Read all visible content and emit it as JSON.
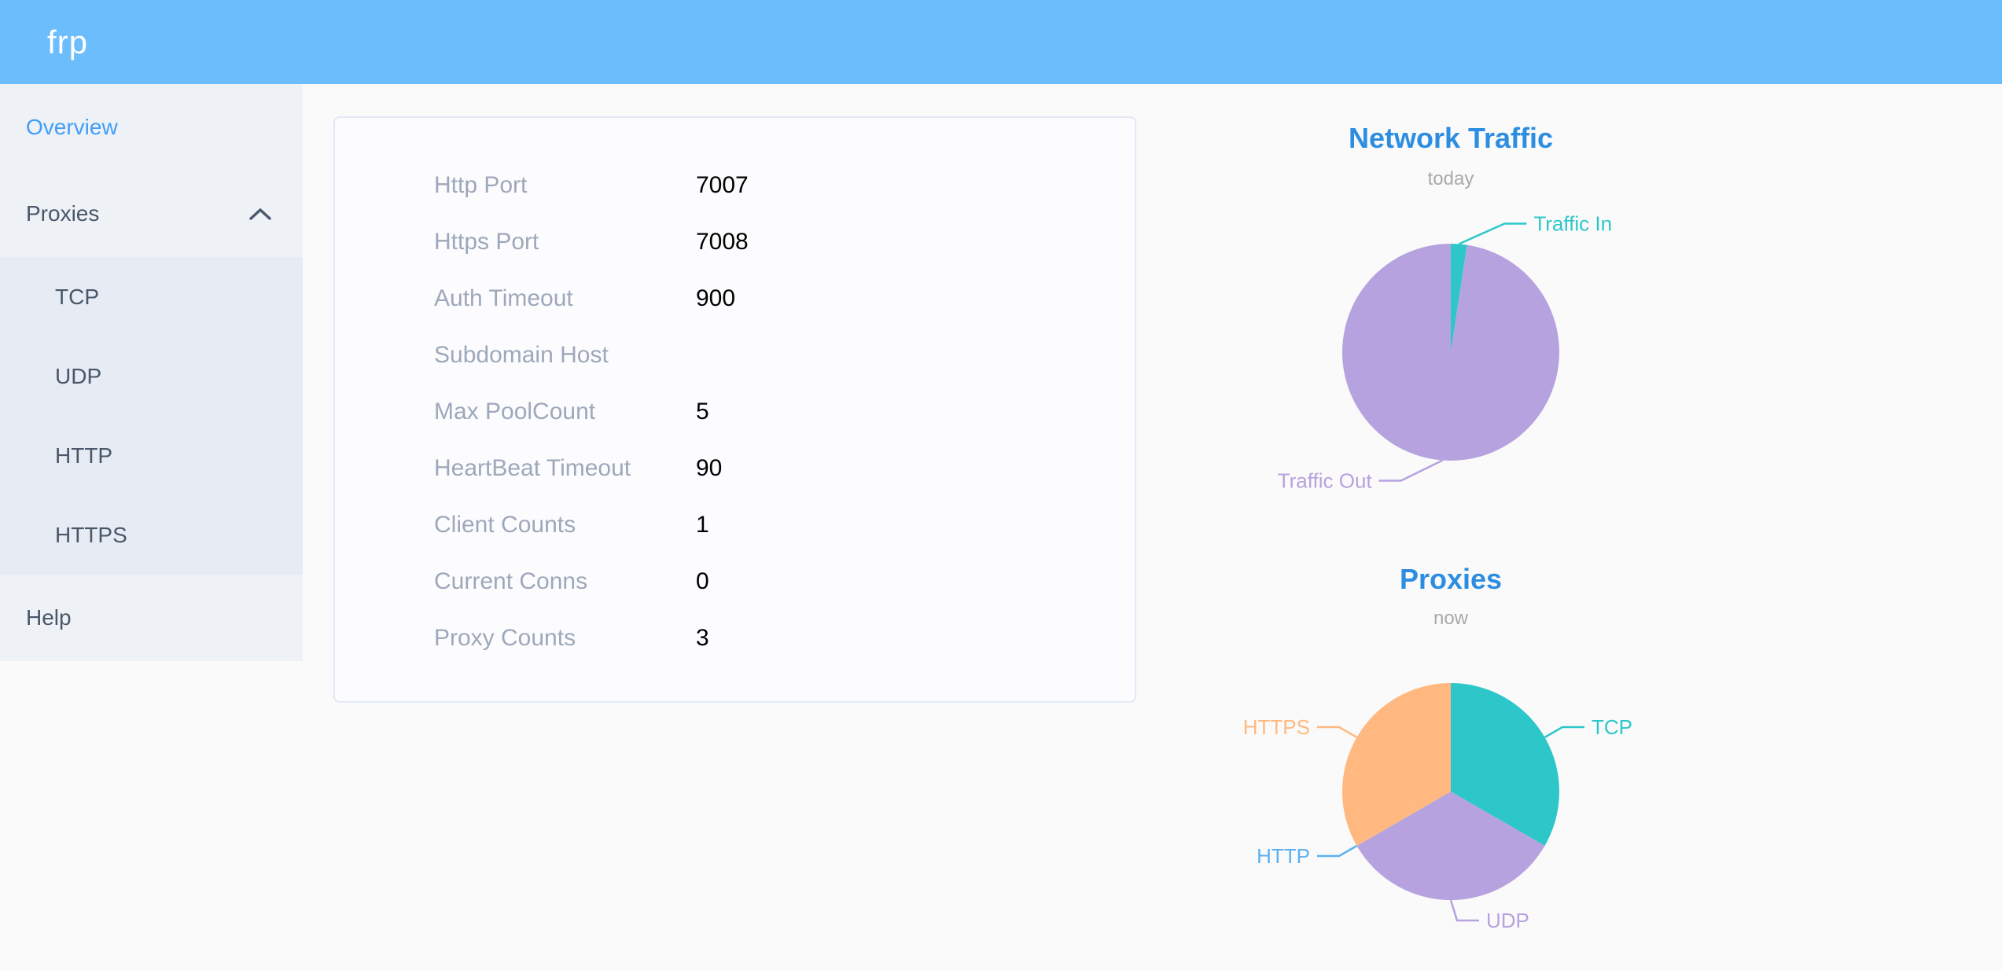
{
  "header": {
    "logo": "frp"
  },
  "sidebar": {
    "items": [
      {
        "label": "Overview",
        "active": true
      },
      {
        "label": "Proxies",
        "expanded": true
      },
      {
        "label": "TCP"
      },
      {
        "label": "UDP"
      },
      {
        "label": "HTTP"
      },
      {
        "label": "HTTPS"
      },
      {
        "label": "Help"
      }
    ]
  },
  "config": {
    "rows": [
      {
        "label": "Http Port",
        "value": "7007"
      },
      {
        "label": "Https Port",
        "value": "7008"
      },
      {
        "label": "Auth Timeout",
        "value": "900"
      },
      {
        "label": "Subdomain Host",
        "value": ""
      },
      {
        "label": "Max PoolCount",
        "value": "5"
      },
      {
        "label": "HeartBeat Timeout",
        "value": "90"
      },
      {
        "label": "Client Counts",
        "value": "1"
      },
      {
        "label": "Current Conns",
        "value": "0"
      },
      {
        "label": "Proxy Counts",
        "value": "3"
      }
    ]
  },
  "chart_data": [
    {
      "type": "pie",
      "title": "Network Traffic",
      "subtitle": "today",
      "legend_position": "label-lines",
      "values_are": "percent estimated from slice angles",
      "series": [
        {
          "name": "Traffic In",
          "value": 2.4,
          "color": "#2ec7c9"
        },
        {
          "name": "Traffic Out",
          "value": 97.6,
          "color": "#b6a2de"
        }
      ]
    },
    {
      "type": "pie",
      "title": "Proxies",
      "subtitle": "now",
      "legend_position": "label-lines",
      "values_are": "proxy counts",
      "series": [
        {
          "name": "TCP",
          "value": 1,
          "color": "#2ec7c9"
        },
        {
          "name": "UDP",
          "value": 1,
          "color": "#b6a2de"
        },
        {
          "name": "HTTP",
          "value": 0,
          "color": "#5ab1ef"
        },
        {
          "name": "HTTPS",
          "value": 1,
          "color": "#ffb980"
        }
      ]
    }
  ],
  "theme": {
    "header_bg": "#6cbdfb",
    "sidebar_bg": "#eef1f6",
    "submenu_bg": "#e7ebf3",
    "active_item": "#3f9ef8",
    "chart_title": "#2d8de0",
    "teal": "#2ec7c9",
    "purple": "#b6a2de",
    "blue": "#5ab1ef",
    "orange": "#ffb980"
  }
}
